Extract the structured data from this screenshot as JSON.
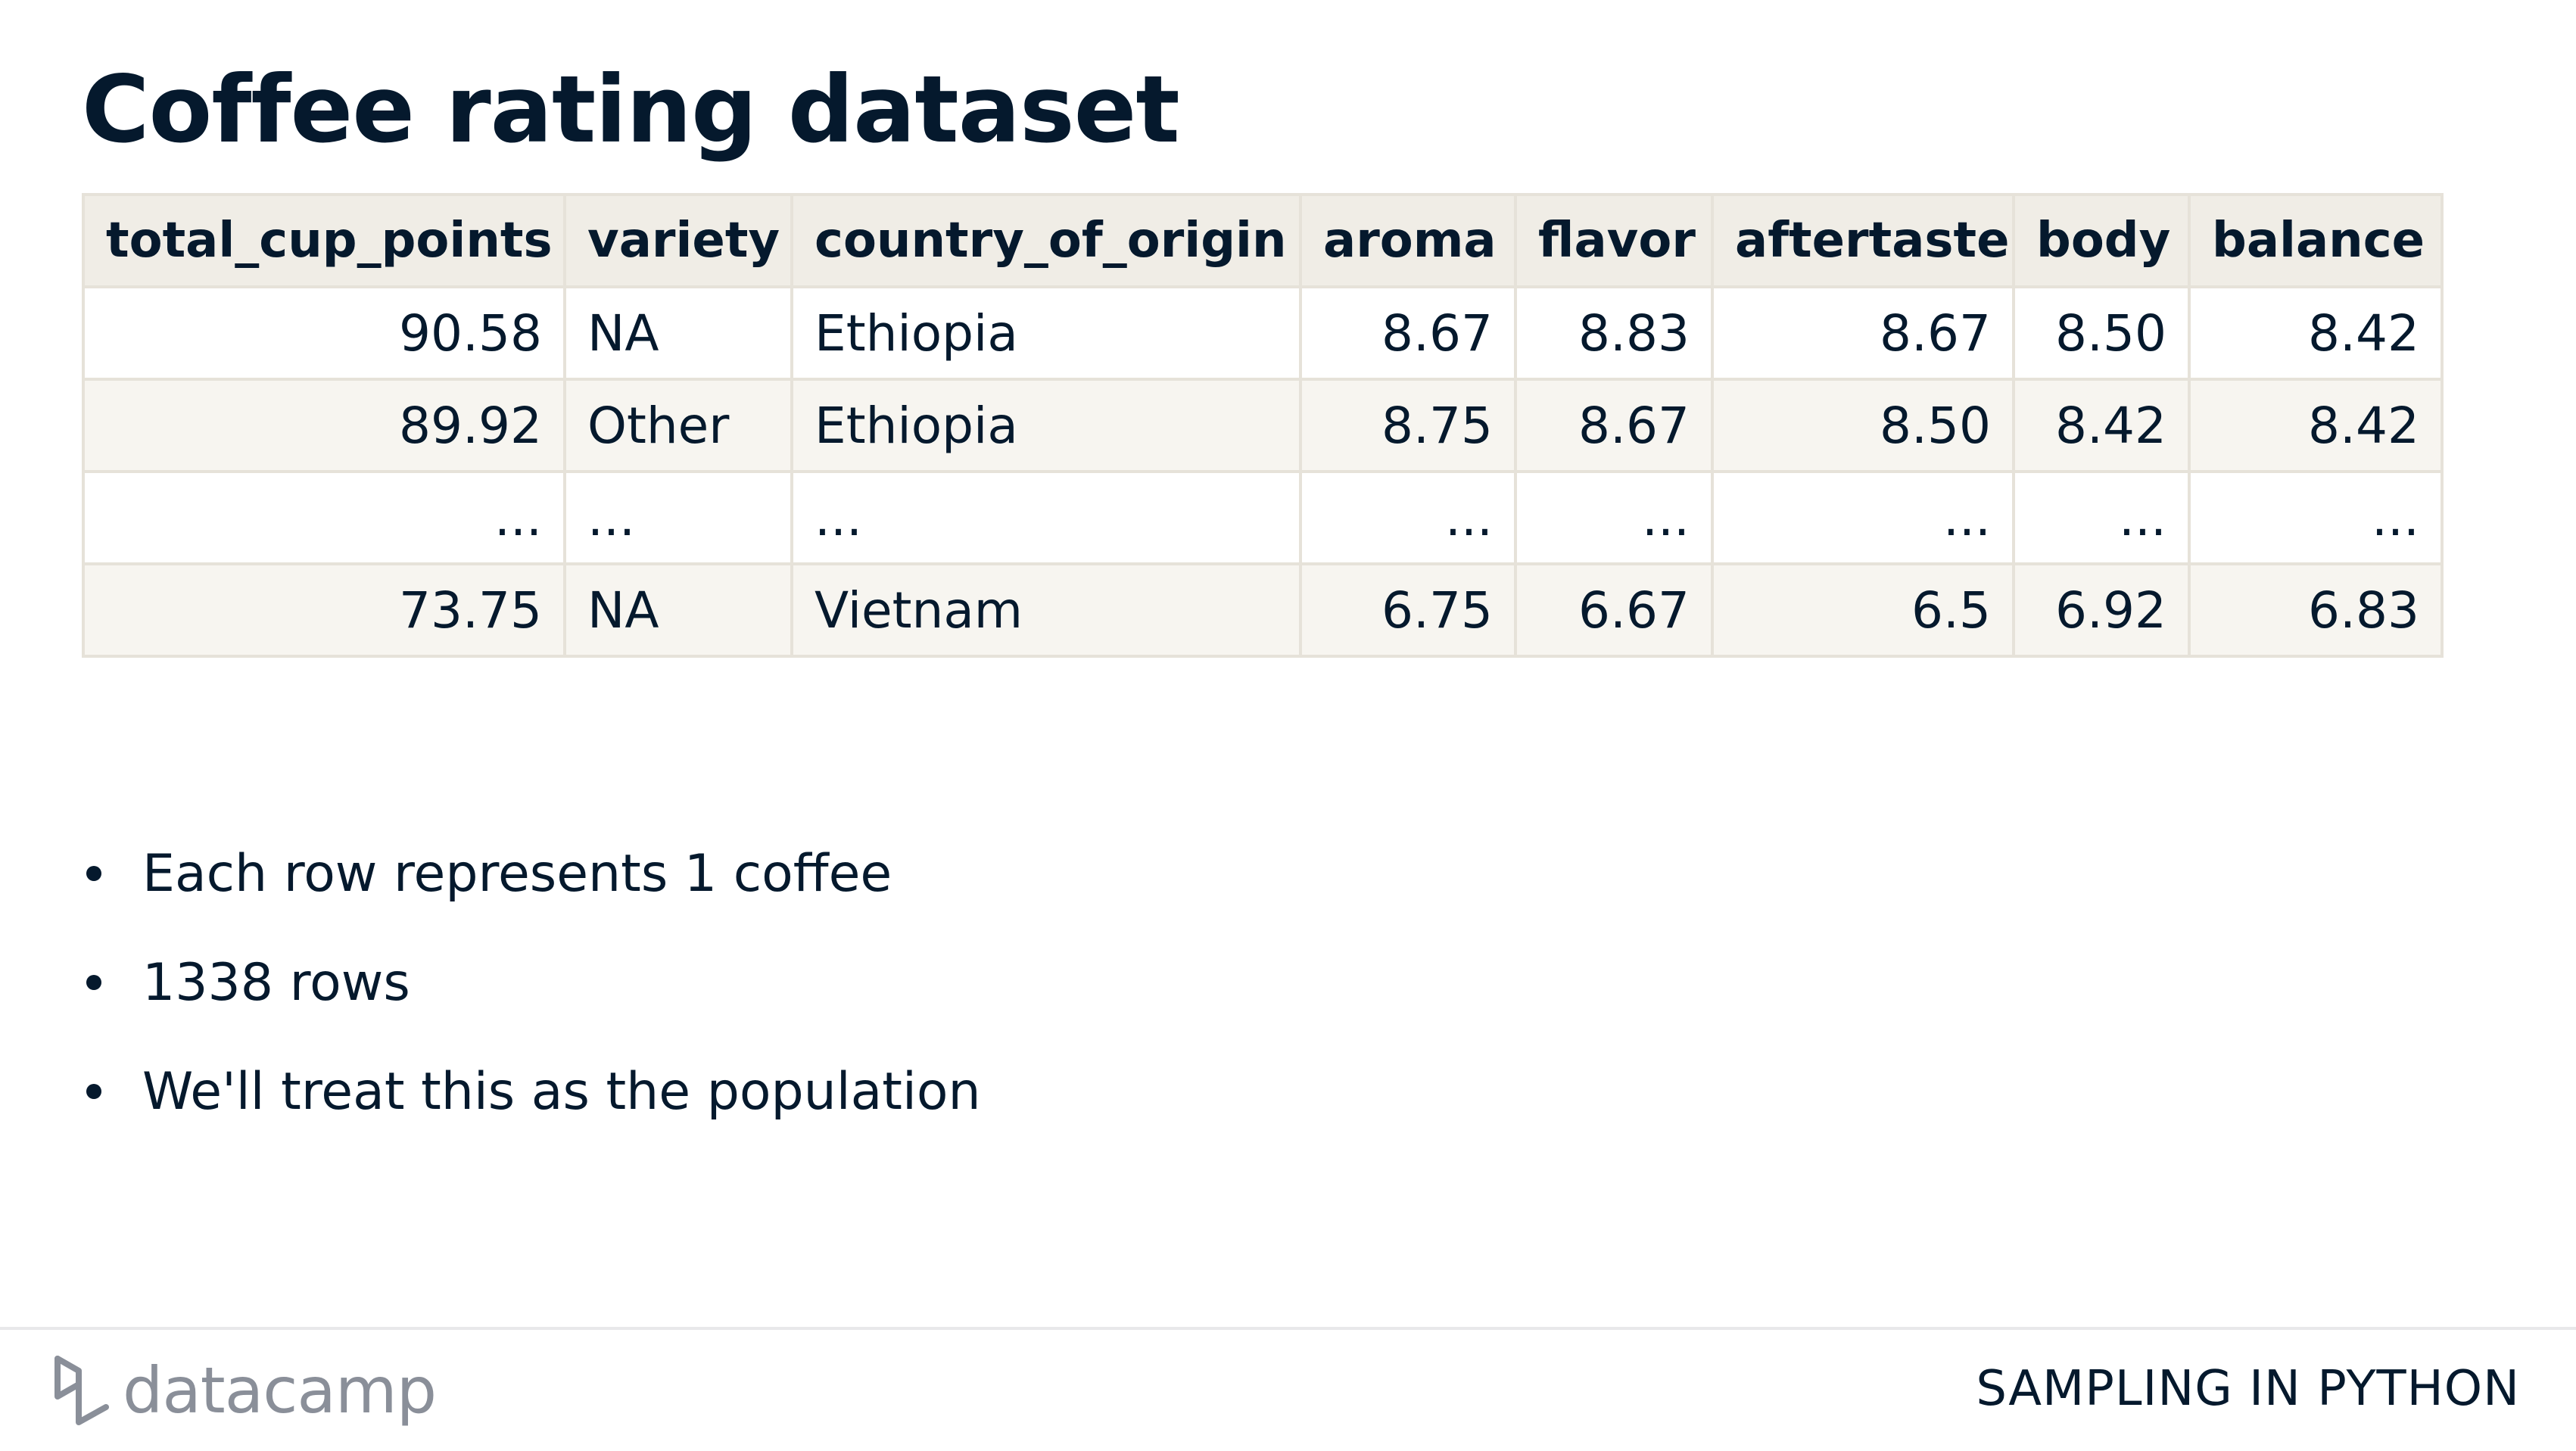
{
  "slide": {
    "title": "Coffee rating dataset"
  },
  "table": {
    "headers": [
      "total_cup_points",
      "variety",
      "country_of_origin",
      "aroma",
      "flavor",
      "aftertaste",
      "body",
      "balance"
    ],
    "rows": [
      [
        "90.58",
        "NA",
        "Ethiopia",
        "8.67",
        "8.83",
        "8.67",
        "8.50",
        "8.42"
      ],
      [
        "89.92",
        "Other",
        "Ethiopia",
        "8.75",
        "8.67",
        "8.50",
        "8.42",
        "8.42"
      ],
      [
        "...",
        "...",
        "...",
        "...",
        "...",
        "...",
        "...",
        "..."
      ],
      [
        "73.75",
        "NA",
        "Vietnam",
        "6.75",
        "6.67",
        "6.5",
        "6.92",
        "6.83"
      ]
    ]
  },
  "bullets": [
    "Each row represents 1 coffee",
    "1338 rows",
    "We'll treat this as the population"
  ],
  "footer": {
    "logo_text": "datacamp",
    "logo_icon": "datacamp-logo-icon",
    "course_name": "SAMPLING IN PYTHON"
  },
  "colors": {
    "text": "#05192d",
    "header_bg": "#f0ede6",
    "stripe_bg": "#f7f5f0",
    "border": "#e6e2d9",
    "logo": "#8a8f99"
  }
}
